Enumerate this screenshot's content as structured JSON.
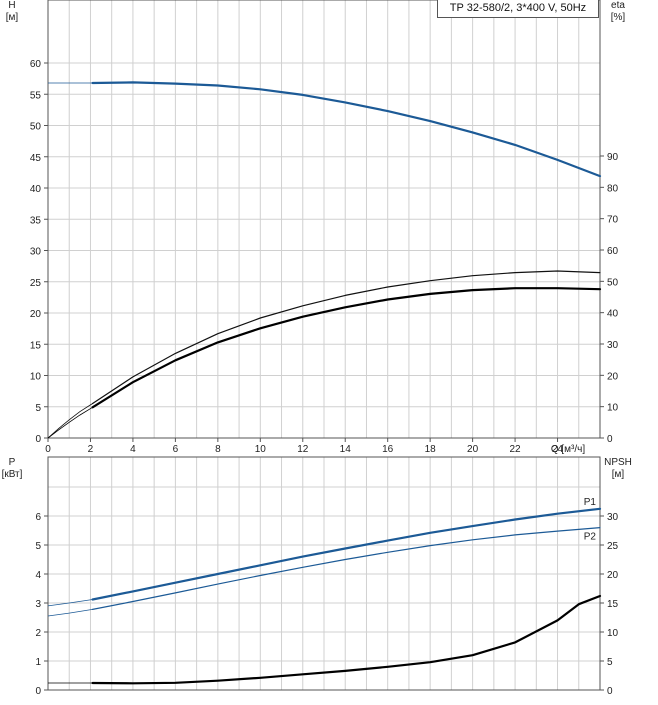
{
  "chart_data": [
    {
      "type": "line",
      "panel": "top",
      "title": "TP 32-580/2, 3*400 V, 50Hz",
      "xlabel": "Q [м³/ч]",
      "xlim": [
        0,
        26
      ],
      "xticks": [
        "0",
        "2",
        "4",
        "6",
        "8",
        "10",
        "12",
        "14",
        "16",
        "18",
        "20",
        "22",
        "24"
      ],
      "left_axis": {
        "label_top": "H",
        "label_unit": "[м]",
        "ylim": [
          0,
          60
        ],
        "ticks": [
          "0",
          "5",
          "10",
          "15",
          "20",
          "25",
          "30",
          "35",
          "40",
          "45",
          "50",
          "55",
          "60"
        ]
      },
      "right_axis": {
        "label_top": "eta",
        "label_unit": "[%]",
        "ylim": [
          0,
          90
        ],
        "ticks": [
          "0",
          "10",
          "20",
          "30",
          "40",
          "50",
          "60",
          "70",
          "80",
          "90"
        ]
      },
      "grid": true,
      "series": [
        {
          "axis": "left",
          "color": "#1c5a96",
          "width": 2.2,
          "thin_x": [
            0,
            2.1
          ],
          "thin_y": [
            56.8,
            56.8
          ],
          "x": [
            2.1,
            4,
            6,
            8,
            10,
            12,
            14,
            16,
            18,
            20,
            22,
            24,
            26
          ],
          "y": [
            56.8,
            56.9,
            56.7,
            56.4,
            55.8,
            54.9,
            53.7,
            52.3,
            50.7,
            48.9,
            46.9,
            44.5,
            41.9
          ]
        },
        {
          "axis": "right",
          "color": "#111111",
          "width": 1.2,
          "thin_x": [
            0,
            0.5,
            1,
            1.5,
            2.1
          ],
          "thin_y": [
            0,
            3,
            5.8,
            8.4,
            11
          ],
          "x": [
            2.1,
            4,
            6,
            8,
            10,
            12,
            14,
            16,
            18,
            20,
            22,
            24,
            26
          ],
          "y": [
            11,
            19.5,
            27,
            33.3,
            38.3,
            42.2,
            45.5,
            48.2,
            50.2,
            51.8,
            52.8,
            53.3,
            52.8
          ]
        },
        {
          "axis": "right",
          "color": "#000000",
          "width": 2.2,
          "thin_x": [
            0,
            0.5,
            1,
            1.5,
            2.1
          ],
          "thin_y": [
            0,
            2.6,
            5,
            7.3,
            9.8
          ],
          "x": [
            2.1,
            4,
            6,
            8,
            10,
            12,
            14,
            16,
            18,
            20,
            22,
            24,
            26
          ],
          "y": [
            9.8,
            17.8,
            24.8,
            30.5,
            35,
            38.7,
            41.7,
            44.2,
            46,
            47.2,
            47.8,
            47.8,
            47.5
          ]
        }
      ]
    },
    {
      "type": "line",
      "panel": "bottom",
      "left_axis": {
        "label_top": "P",
        "label_unit": "[кВт]",
        "ylim": [
          0,
          7
        ],
        "ticks": [
          "0",
          "1",
          "2",
          "3",
          "4",
          "5",
          "6"
        ]
      },
      "right_axis": {
        "label_top": "NPSH",
        "label_unit": "[м]",
        "ylim": [
          0,
          35
        ],
        "ticks": [
          "0",
          "5",
          "10",
          "15",
          "20",
          "25",
          "30"
        ]
      },
      "xlim": [
        0,
        26
      ],
      "grid": true,
      "series": [
        {
          "name": "P1",
          "axis": "left",
          "color": "#1c5a96",
          "width": 2.2,
          "thin_x": [
            0,
            1,
            2.1
          ],
          "thin_y": [
            2.9,
            3.0,
            3.12
          ],
          "x": [
            2.1,
            4,
            6,
            8,
            10,
            12,
            14,
            16,
            18,
            20,
            22,
            24,
            26
          ],
          "y": [
            3.12,
            3.4,
            3.7,
            4.0,
            4.3,
            4.6,
            4.88,
            5.15,
            5.42,
            5.65,
            5.88,
            6.08,
            6.25
          ]
        },
        {
          "name": "P2",
          "axis": "left",
          "color": "#1c5a96",
          "width": 1.2,
          "thin_x": [
            0,
            1,
            2.1
          ],
          "thin_y": [
            2.55,
            2.65,
            2.78
          ],
          "x": [
            2.1,
            4,
            6,
            8,
            10,
            12,
            14,
            16,
            18,
            20,
            22,
            24,
            26
          ],
          "y": [
            2.78,
            3.05,
            3.35,
            3.65,
            3.95,
            4.23,
            4.5,
            4.75,
            4.98,
            5.18,
            5.35,
            5.48,
            5.6
          ]
        },
        {
          "axis": "right",
          "color": "#000000",
          "width": 2.2,
          "thin_x": [
            0,
            2.1
          ],
          "thin_y": [
            1.2,
            1.2
          ],
          "x": [
            2.1,
            4,
            6,
            8,
            10,
            12,
            14,
            16,
            18,
            20,
            22,
            24,
            25,
            26
          ],
          "y": [
            1.2,
            1.15,
            1.25,
            1.6,
            2.1,
            2.7,
            3.3,
            4.0,
            4.8,
            6.0,
            8.2,
            12.0,
            14.8,
            16.2
          ]
        }
      ]
    }
  ]
}
